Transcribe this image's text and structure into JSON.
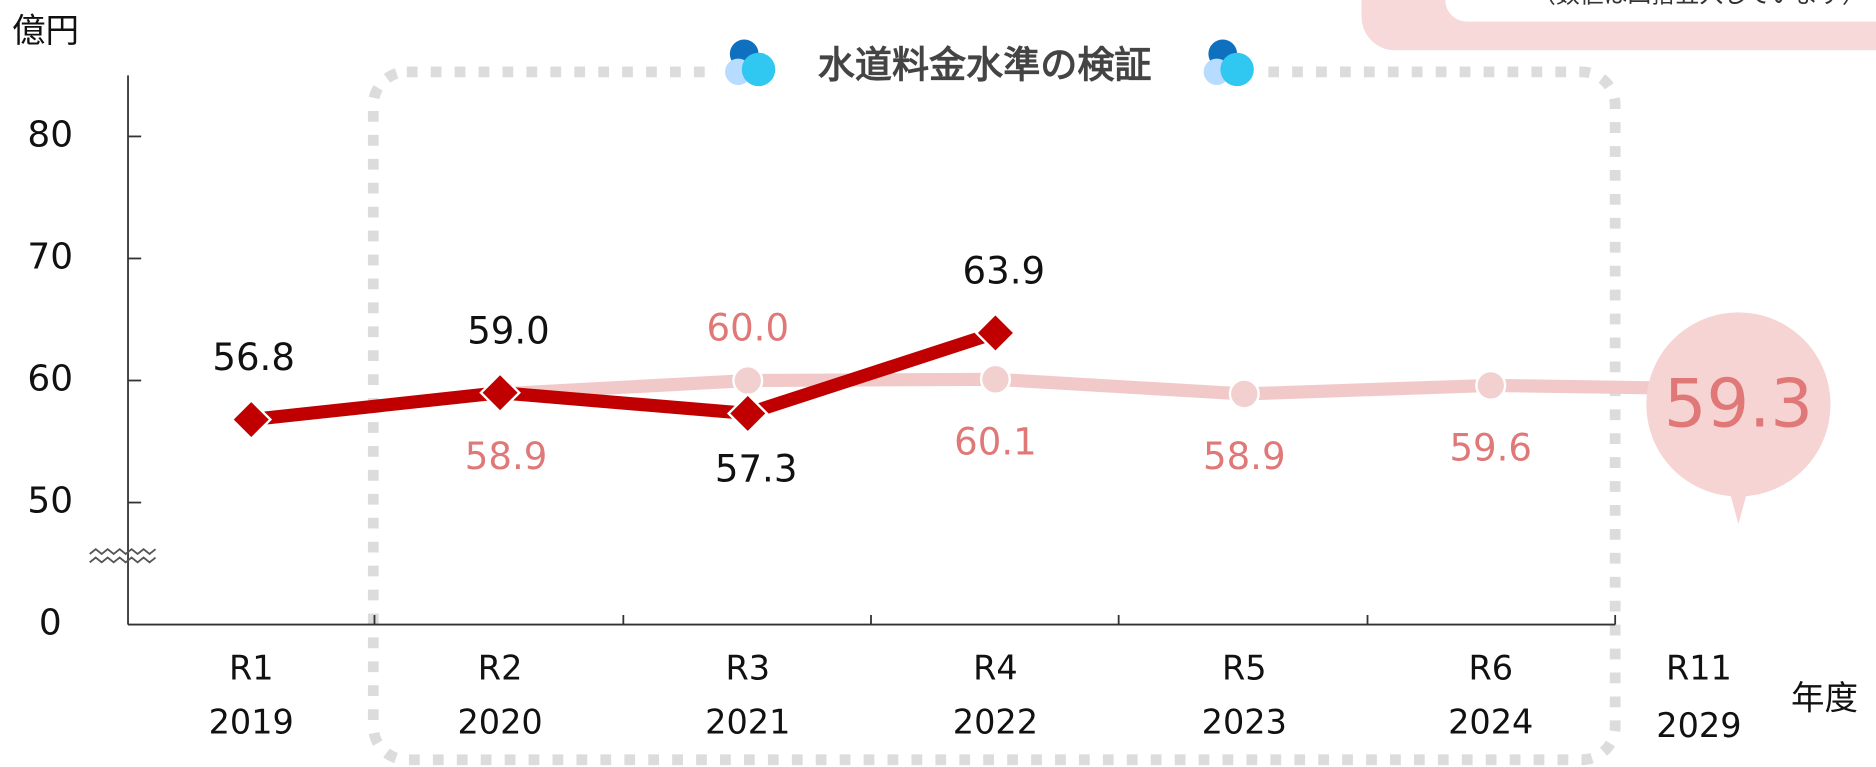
{
  "chart_data": {
    "type": "line",
    "title": "水道料金水準の検証",
    "note": "（数値は四捨五入しています）",
    "y_label": "億円",
    "x_label": "年度",
    "categories": [
      "R1",
      "R2",
      "R3",
      "R4",
      "R5",
      "R6",
      "R11"
    ],
    "years": [
      "2019",
      "2020",
      "2021",
      "2022",
      "2023",
      "2024",
      "2029"
    ],
    "ylim": [
      0,
      85
    ],
    "yticks": [
      0,
      50,
      60,
      70,
      80
    ],
    "y_break": [
      0,
      50
    ],
    "series": [
      {
        "color": "#f2c9c9",
        "label_color": "#e07878",
        "values": [
          null,
          58.9,
          60.0,
          60.1,
          58.9,
          59.6,
          59.3
        ],
        "value_labels": [
          null,
          "58.9",
          "60.0",
          "60.1",
          "58.9",
          "59.6",
          "59.3"
        ]
      },
      {
        "color": "#c00000",
        "label_color": "#111111",
        "values": [
          56.8,
          59.0,
          57.3,
          63.9,
          null,
          null,
          null
        ],
        "value_labels": [
          "56.8",
          "59.0",
          "57.3",
          "63.9",
          null,
          null,
          null
        ]
      }
    ]
  }
}
